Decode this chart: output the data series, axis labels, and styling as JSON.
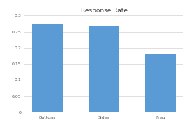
{
  "categories": [
    "Buttons",
    "Sides",
    "Freq"
  ],
  "values": [
    0.272,
    0.268,
    0.181
  ],
  "bar_color": "#5B9BD5",
  "title": "Response Rate",
  "title_fontsize": 6.5,
  "ylim": [
    0,
    0.3
  ],
  "yticks": [
    0,
    0.05,
    0.1,
    0.15,
    0.2,
    0.25,
    0.3
  ],
  "background_color": "#ffffff",
  "grid_color": "#d9d9d9",
  "tick_label_fontsize": 4.5,
  "xlabel_fontsize": 4.5,
  "bar_width": 0.55
}
